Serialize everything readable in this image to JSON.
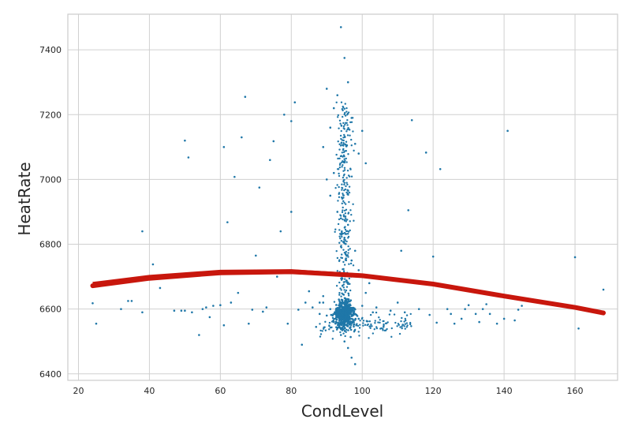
{
  "chart_data": {
    "type": "scatter",
    "xlabel": "CondLevel",
    "ylabel": "HeatRate",
    "xlim": [
      17,
      172
    ],
    "ylim": [
      6380,
      7510
    ],
    "x_ticks": [
      20,
      40,
      60,
      80,
      100,
      120,
      140,
      160
    ],
    "y_ticks": [
      6400,
      6600,
      6800,
      7000,
      7200,
      7400
    ],
    "x_tick_labels": [
      "20",
      "40",
      "60",
      "80",
      "100",
      "120",
      "140",
      "160"
    ],
    "y_tick_labels": [
      "6400",
      "6600",
      "6800",
      "7000",
      "7200",
      "7400"
    ],
    "grid": true,
    "colors": {
      "points": "#1f77a8",
      "fit": "#c8170d",
      "grid": "#d0d0d0"
    },
    "series": [
      {
        "kind": "points",
        "x": [
          24,
          25,
          32,
          34,
          35,
          38,
          38,
          41,
          43,
          47,
          49,
          50,
          50,
          51,
          52,
          54,
          55,
          56,
          57,
          58,
          60,
          61,
          61,
          62,
          63,
          64,
          65,
          66,
          67,
          68,
          69,
          70,
          71,
          72,
          73,
          74,
          75,
          76,
          77,
          78,
          79,
          80,
          80,
          81,
          82,
          83,
          84,
          85,
          86,
          87,
          88,
          89,
          104,
          106,
          108,
          110,
          111,
          112,
          113,
          114,
          116,
          118,
          119,
          120,
          121,
          122,
          124,
          125,
          126,
          128,
          129,
          130,
          132,
          133,
          134,
          135,
          136,
          138,
          140,
          141,
          143,
          144,
          145,
          160,
          161,
          168,
          94,
          95,
          93,
          96,
          90,
          91,
          92,
          97,
          98,
          99,
          100,
          101,
          89,
          90,
          91,
          92,
          93,
          94,
          95,
          96,
          97,
          98,
          99,
          100,
          101,
          102,
          88,
          89,
          90,
          91,
          92,
          93,
          94,
          95,
          96,
          97,
          98,
          99,
          100,
          103
        ],
        "y": [
          6618,
          6555,
          6600,
          6625,
          6625,
          6840,
          6590,
          6738,
          6665,
          6595,
          6595,
          7120,
          6595,
          7068,
          6590,
          6520,
          6600,
          6605,
          6575,
          6610,
          6612,
          7100,
          6550,
          6868,
          6620,
          7008,
          6650,
          7130,
          7255,
          6555,
          6598,
          6765,
          6975,
          6592,
          6605,
          7060,
          7118,
          6700,
          6840,
          7200,
          6555,
          7180,
          6900,
          7238,
          6598,
          6490,
          6620,
          6655,
          6605,
          6545,
          6585,
          6620,
          6605,
          6545,
          6595,
          6620,
          6780,
          6590,
          6905,
          7183,
          6600,
          7083,
          6582,
          6762,
          6558,
          7032,
          6600,
          6585,
          6555,
          6570,
          6600,
          6612,
          6585,
          6560,
          6600,
          6615,
          6585,
          6555,
          6570,
          7150,
          6565,
          6598,
          6610,
          6760,
          6540,
          6660,
          7470,
          7375,
          7260,
          7300,
          7280,
          7160,
          7220,
          7190,
          7110,
          7080,
          7150,
          7050,
          7100,
          7000,
          6950,
          7020,
          6900,
          6880,
          6820,
          6860,
          6750,
          6780,
          6720,
          6700,
          6650,
          6680,
          6620,
          6640,
          6580,
          6600,
          6560,
          6540,
          6520,
          6500,
          6480,
          6450,
          6430,
          6570,
          6610,
          6590
        ]
      },
      {
        "kind": "fit-band",
        "x": [
          24,
          40,
          60,
          80,
          100,
          120,
          140,
          160,
          168
        ],
        "y": [
          6672,
          6695,
          6712,
          6715,
          6703,
          6677,
          6640,
          6605,
          6588
        ]
      }
    ]
  }
}
